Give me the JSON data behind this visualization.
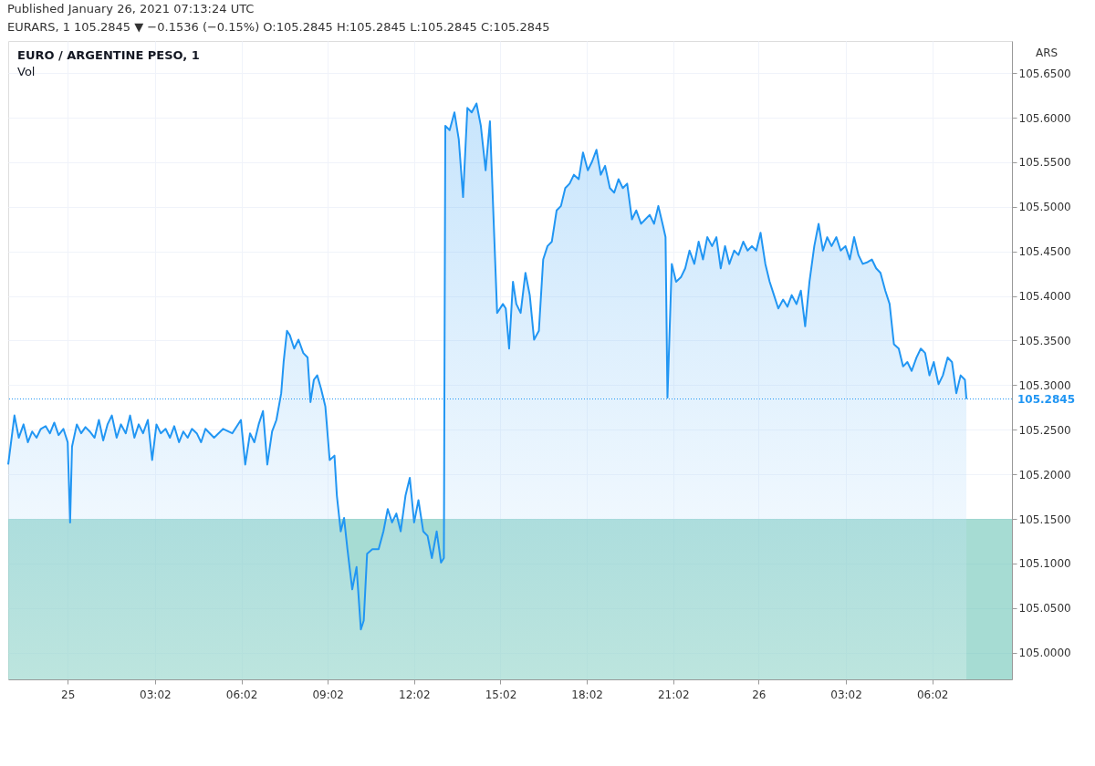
{
  "chart_data": {
    "type": "area",
    "title": "EURO / ARGENTINE PESO, 1",
    "ylabel": "ARS",
    "annotations": [
      "Published January 26, 2021 07:13:24 UTC",
      "EURARS, 1  105.2845 ▼ −0.1536 (−0.15%)  O:105.2845  H:105.2845  L:105.2845  C:105.2845",
      "Vol"
    ],
    "bands": [
      {
        "axis": "y",
        "from": 104.97,
        "to": 105.15,
        "color": "#5dbfae"
      }
    ],
    "xlim": [
      "2021-01-24T21:56",
      "2021-01-26T08:48"
    ],
    "ylim": [
      104.97,
      105.686
    ],
    "xticks": [
      {
        "value": "2021-01-25T00:00",
        "label": "25"
      },
      {
        "value": "2021-01-25T03:02",
        "label": "03:02"
      },
      {
        "value": "2021-01-25T06:02",
        "label": "06:02"
      },
      {
        "value": "2021-01-25T09:02",
        "label": "09:02"
      },
      {
        "value": "2021-01-25T12:02",
        "label": "12:02"
      },
      {
        "value": "2021-01-25T15:02",
        "label": "15:02"
      },
      {
        "value": "2021-01-25T18:02",
        "label": "18:02"
      },
      {
        "value": "2021-01-25T21:02",
        "label": "21:02"
      },
      {
        "value": "2021-01-26T00:00",
        "label": "26"
      },
      {
        "value": "2021-01-26T03:02",
        "label": "03:02"
      },
      {
        "value": "2021-01-26T06:02",
        "label": "06:02"
      }
    ],
    "yticks": [
      {
        "value": 105.0,
        "label": "105.0000"
      },
      {
        "value": 105.05,
        "label": "105.0500"
      },
      {
        "value": 105.1,
        "label": "105.1000"
      },
      {
        "value": 105.15,
        "label": "105.1500"
      },
      {
        "value": 105.2,
        "label": "105.2000"
      },
      {
        "value": 105.25,
        "label": "105.2500"
      },
      {
        "value": 105.3,
        "label": "105.3000"
      },
      {
        "value": 105.35,
        "label": "105.3500"
      },
      {
        "value": 105.4,
        "label": "105.4000"
      },
      {
        "value": 105.45,
        "label": "105.4500"
      },
      {
        "value": 105.5,
        "label": "105.5000"
      },
      {
        "value": 105.55,
        "label": "105.5500"
      },
      {
        "value": 105.6,
        "label": "105.6000"
      },
      {
        "value": 105.65,
        "label": "105.6500"
      }
    ],
    "grid": true,
    "ref_lines": [
      {
        "axis": "y",
        "value": 105.2845,
        "label": "105.2845",
        "color": "#2196f3",
        "line_style": "dotted"
      }
    ],
    "x": [
      "2021-01-24T21:56",
      "2021-01-24T22:09",
      "2021-01-24T22:18",
      "2021-01-24T22:28",
      "2021-01-24T22:37",
      "2021-01-24T22:46",
      "2021-01-24T22:55",
      "2021-01-24T23:04",
      "2021-01-24T23:14",
      "2021-01-24T23:23",
      "2021-01-24T23:32",
      "2021-01-24T23:41",
      "2021-01-24T23:51",
      "2021-01-25T00:00",
      "2021-01-25T00:05",
      "2021-01-25T00:09",
      "2021-01-25T00:19",
      "2021-01-25T00:28",
      "2021-01-25T00:37",
      "2021-01-25T00:46",
      "2021-01-25T00:56",
      "2021-01-25T01:05",
      "2021-01-25T01:14",
      "2021-01-25T01:23",
      "2021-01-25T01:32",
      "2021-01-25T01:42",
      "2021-01-25T01:51",
      "2021-01-25T02:01",
      "2021-01-25T02:10",
      "2021-01-25T02:19",
      "2021-01-25T02:28",
      "2021-01-25T02:37",
      "2021-01-25T02:47",
      "2021-01-25T02:56",
      "2021-01-25T03:05",
      "2021-01-25T03:14",
      "2021-01-25T03:24",
      "2021-01-25T03:33",
      "2021-01-25T03:42",
      "2021-01-25T03:52",
      "2021-01-25T04:01",
      "2021-01-25T04:10",
      "2021-01-25T04:19",
      "2021-01-25T04:29",
      "2021-01-25T04:38",
      "2021-01-25T04:47",
      "2021-01-25T05:05",
      "2021-01-25T05:24",
      "2021-01-25T05:43",
      "2021-01-25T06:01",
      "2021-01-25T06:10",
      "2021-01-25T06:20",
      "2021-01-25T06:29",
      "2021-01-25T06:38",
      "2021-01-25T06:47",
      "2021-01-25T06:56",
      "2021-01-25T07:06",
      "2021-01-25T07:15",
      "2021-01-25T07:25",
      "2021-01-25T07:30",
      "2021-01-25T07:37",
      "2021-01-25T07:43",
      "2021-01-25T07:52",
      "2021-01-25T08:01",
      "2021-01-25T08:11",
      "2021-01-25T08:20",
      "2021-01-25T08:26",
      "2021-01-25T08:33",
      "2021-01-25T08:40",
      "2021-01-25T08:48",
      "2021-01-25T08:57",
      "2021-01-25T09:06",
      "2021-01-25T09:16",
      "2021-01-25T09:21",
      "2021-01-25T09:29",
      "2021-01-25T09:36",
      "2021-01-25T09:43",
      "2021-01-25T09:53",
      "2021-01-25T10:02",
      "2021-01-25T10:11",
      "2021-01-25T10:17",
      "2021-01-25T10:24",
      "2021-01-25T10:35",
      "2021-01-25T10:48",
      "2021-01-25T10:58",
      "2021-01-25T11:07",
      "2021-01-25T11:16",
      "2021-01-25T11:25",
      "2021-01-25T11:34",
      "2021-01-25T11:44",
      "2021-01-25T11:53",
      "2021-01-25T12:02",
      "2021-01-25T12:11",
      "2021-01-25T12:21",
      "2021-01-25T12:30",
      "2021-01-25T12:39",
      "2021-01-25T12:49",
      "2021-01-25T12:58",
      "2021-01-25T13:04",
      "2021-01-25T13:07",
      "2021-01-25T13:16",
      "2021-01-25T13:26",
      "2021-01-25T13:35",
      "2021-01-25T13:44",
      "2021-01-25T13:53",
      "2021-01-25T14:02",
      "2021-01-25T14:12",
      "2021-01-25T14:21",
      "2021-01-25T14:31",
      "2021-01-25T14:40",
      "2021-01-25T14:49",
      "2021-01-25T14:55",
      "2021-01-25T15:07",
      "2021-01-25T15:13",
      "2021-01-25T15:20",
      "2021-01-25T15:28",
      "2021-01-25T15:35",
      "2021-01-25T15:44",
      "2021-01-25T15:54",
      "2021-01-25T16:03",
      "2021-01-25T16:12",
      "2021-01-25T16:22",
      "2021-01-25T16:31",
      "2021-01-25T16:40",
      "2021-01-25T16:49",
      "2021-01-25T16:59",
      "2021-01-25T17:08",
      "2021-01-25T17:17",
      "2021-01-25T17:26",
      "2021-01-25T17:35",
      "2021-01-25T17:45",
      "2021-01-25T17:54",
      "2021-01-25T18:04",
      "2021-01-25T18:13",
      "2021-01-25T18:22",
      "2021-01-25T18:31",
      "2021-01-25T18:40",
      "2021-01-25T18:50",
      "2021-01-25T18:59",
      "2021-01-25T19:08",
      "2021-01-25T19:17",
      "2021-01-25T19:26",
      "2021-01-25T19:36",
      "2021-01-25T19:45",
      "2021-01-25T19:55",
      "2021-01-25T20:04",
      "2021-01-25T20:13",
      "2021-01-25T20:22",
      "2021-01-25T20:31",
      "2021-01-25T20:41",
      "2021-01-25T20:46",
      "2021-01-25T20:50",
      "2021-01-25T20:59",
      "2021-01-25T21:08",
      "2021-01-25T21:18",
      "2021-01-25T21:27",
      "2021-01-25T21:36",
      "2021-01-25T21:46",
      "2021-01-25T21:55",
      "2021-01-25T22:04",
      "2021-01-25T22:13",
      "2021-01-25T22:23",
      "2021-01-25T22:32",
      "2021-01-25T22:41",
      "2021-01-25T22:50",
      "2021-01-25T22:59",
      "2021-01-25T23:09",
      "2021-01-25T23:18",
      "2021-01-25T23:28",
      "2021-01-25T23:37",
      "2021-01-25T23:46",
      "2021-01-25T23:55",
      "2021-01-26T00:04",
      "2021-01-26T00:14",
      "2021-01-26T00:23",
      "2021-01-26T00:32",
      "2021-01-26T00:41",
      "2021-01-26T00:51",
      "2021-01-26T01:00",
      "2021-01-26T01:09",
      "2021-01-26T01:19",
      "2021-01-26T01:28",
      "2021-01-26T01:37",
      "2021-01-26T01:46",
      "2021-01-26T01:56",
      "2021-01-26T02:05",
      "2021-01-26T02:14",
      "2021-01-26T02:23",
      "2021-01-26T02:32",
      "2021-01-26T02:42",
      "2021-01-26T02:51",
      "2021-01-26T03:01",
      "2021-01-26T03:10",
      "2021-01-26T03:19",
      "2021-01-26T03:28",
      "2021-01-26T03:37",
      "2021-01-26T03:47",
      "2021-01-26T03:56",
      "2021-01-26T04:05",
      "2021-01-26T04:14",
      "2021-01-26T04:24",
      "2021-01-26T04:33",
      "2021-01-26T04:42",
      "2021-01-26T04:52",
      "2021-01-26T05:01",
      "2021-01-26T05:10",
      "2021-01-26T05:19",
      "2021-01-26T05:29",
      "2021-01-26T05:38",
      "2021-01-26T05:47",
      "2021-01-26T05:56",
      "2021-01-26T06:05",
      "2021-01-26T06:15",
      "2021-01-26T06:24",
      "2021-01-26T06:34",
      "2021-01-26T06:43",
      "2021-01-26T06:52",
      "2021-01-26T07:01",
      "2021-01-26T07:10",
      "2021-01-26T07:13"
    ],
    "series": [
      {
        "color": "#2196f3",
        "values": [
          105.211,
          105.266,
          105.241,
          105.256,
          105.236,
          105.248,
          105.241,
          105.251,
          105.254,
          105.246,
          105.258,
          105.244,
          105.251,
          105.236,
          105.146,
          105.231,
          105.256,
          105.246,
          105.253,
          105.248,
          105.241,
          105.261,
          105.238,
          105.256,
          105.266,
          105.241,
          105.256,
          105.246,
          105.266,
          105.241,
          105.256,
          105.246,
          105.261,
          105.216,
          105.256,
          105.246,
          105.251,
          105.241,
          105.254,
          105.236,
          105.248,
          105.241,
          105.251,
          105.246,
          105.236,
          105.251,
          105.241,
          105.251,
          105.246,
          105.261,
          105.211,
          105.246,
          105.236,
          105.256,
          105.271,
          105.211,
          105.248,
          105.261,
          105.291,
          105.326,
          105.361,
          105.356,
          105.341,
          105.351,
          105.336,
          105.331,
          105.281,
          105.306,
          105.311,
          105.296,
          105.276,
          105.216,
          105.221,
          105.176,
          105.136,
          105.151,
          105.116,
          105.071,
          105.096,
          105.026,
          105.036,
          105.111,
          105.116,
          105.116,
          105.136,
          105.161,
          105.146,
          105.156,
          105.136,
          105.176,
          105.196,
          105.146,
          105.171,
          105.136,
          105.131,
          105.106,
          105.136,
          105.101,
          105.106,
          105.591,
          105.586,
          105.606,
          105.576,
          105.511,
          105.611,
          105.606,
          105.616,
          105.591,
          105.541,
          105.596,
          105.466,
          105.381,
          105.391,
          105.386,
          105.341,
          105.416,
          105.391,
          105.381,
          105.426,
          105.401,
          105.351,
          105.361,
          105.441,
          105.456,
          105.461,
          105.496,
          105.501,
          105.521,
          105.526,
          105.536,
          105.531,
          105.561,
          105.541,
          105.551,
          105.564,
          105.536,
          105.546,
          105.521,
          105.516,
          105.531,
          105.521,
          105.526,
          105.486,
          105.496,
          105.481,
          105.486,
          105.491,
          105.481,
          105.501,
          105.478,
          105.466,
          105.286,
          105.436,
          105.416,
          105.421,
          105.431,
          105.451,
          105.436,
          105.461,
          105.441,
          105.466,
          105.456,
          105.466,
          105.431,
          105.456,
          105.436,
          105.451,
          105.446,
          105.461,
          105.451,
          105.456,
          105.451,
          105.471,
          105.436,
          105.416,
          105.401,
          105.386,
          105.396,
          105.388,
          105.401,
          105.391,
          105.406,
          105.366,
          105.416,
          105.456,
          105.481,
          105.451,
          105.466,
          105.456,
          105.466,
          105.451,
          105.456,
          105.441,
          105.466,
          105.446,
          105.436,
          105.438,
          105.441,
          105.431,
          105.426,
          105.406,
          105.391,
          105.346,
          105.341,
          105.321,
          105.326,
          105.316,
          105.331,
          105.341,
          105.336,
          105.311,
          105.326,
          105.301,
          105.311,
          105.331,
          105.326,
          105.291,
          105.311,
          105.306,
          105.2845
        ]
      }
    ]
  }
}
